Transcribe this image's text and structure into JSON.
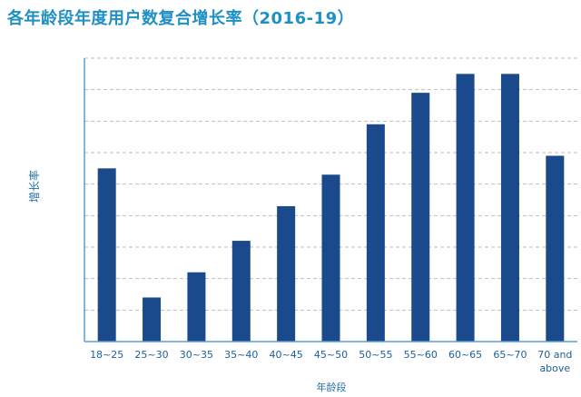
{
  "chart_data": {
    "type": "bar",
    "title": "各年龄段年度用户数复合增长率（2016-19）",
    "xlabel": "年龄段",
    "ylabel": "增长率",
    "categories": [
      "18~25",
      "25~30",
      "30~35",
      "35~40",
      "40~45",
      "45~50",
      "50~55",
      "55~60",
      "60~65",
      "65~70",
      "70 and above"
    ],
    "values": [
      5.5,
      1.4,
      2.2,
      3.2,
      4.3,
      5.3,
      6.9,
      7.9,
      8.5,
      8.5,
      5.9
    ],
    "ylim": [
      0,
      9
    ],
    "grid": true,
    "legend": "none",
    "bar_color": "#1b4a8c",
    "axis_color": "#5b9bd5",
    "grid_color": "#bfbfbf"
  }
}
